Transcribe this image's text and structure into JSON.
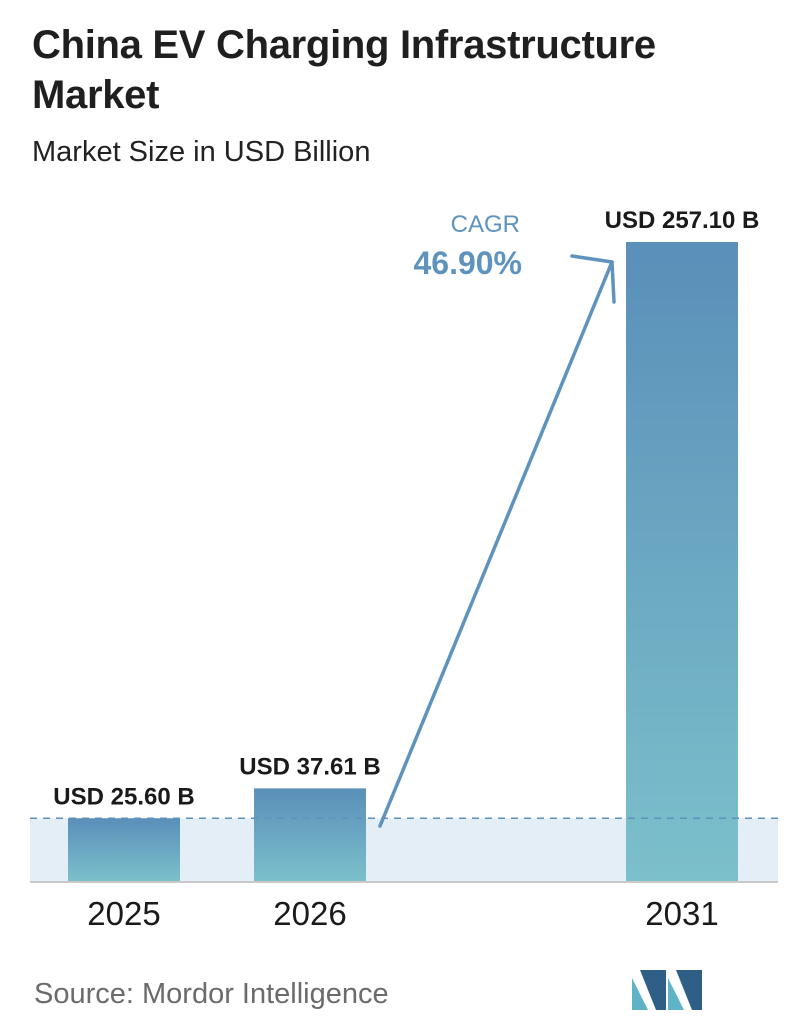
{
  "header": {
    "title": "China EV Charging Infrastructure Market",
    "subtitle": "Market Size in USD Billion"
  },
  "cagr": {
    "label": "CAGR",
    "value": "46.90%"
  },
  "chart_data": {
    "type": "bar",
    "categories": [
      "2025",
      "2026",
      "2031"
    ],
    "values": [
      25.6,
      37.61,
      257.1
    ],
    "data_labels": [
      "USD 25.60 B",
      "USD 37.61 B",
      "USD 257.10 B"
    ],
    "ylim": [
      0,
      257.1
    ],
    "grid": false,
    "legend": "none"
  },
  "footer": {
    "source": "Source:  Mordor Intelligence"
  },
  "colors": {
    "bar_top": "#5a8fb9",
    "bar_bottom": "#7cc0cb",
    "band": "#e4eef6",
    "arrow": "#5e93bd",
    "cagr_label": "#5e93bd",
    "logo_dark": "#2f5f86",
    "logo_light": "#5fb3c6"
  }
}
